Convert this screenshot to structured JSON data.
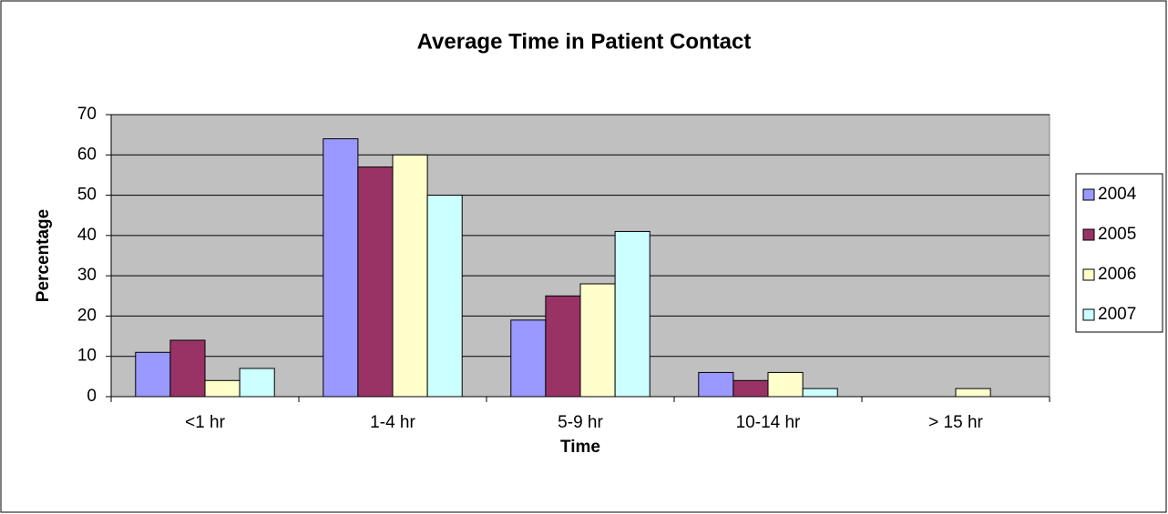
{
  "chart_data": {
    "type": "bar",
    "title": "Average Time in Patient Contact",
    "x_label": "Time",
    "y_label": "Percentage",
    "categories": [
      "<1 hr",
      "1-4 hr",
      "5-9 hr",
      "10-14 hr",
      "> 15 hr"
    ],
    "series": [
      {
        "name": "2004",
        "color": "#9999ff",
        "values": [
          11,
          64,
          19,
          6,
          0
        ]
      },
      {
        "name": "2005",
        "color": "#993366",
        "values": [
          14,
          57,
          25,
          4,
          0
        ]
      },
      {
        "name": "2006",
        "color": "#ffffcc",
        "values": [
          4,
          60,
          28,
          6,
          2
        ]
      },
      {
        "name": "2007",
        "color": "#ccffff",
        "values": [
          7,
          50,
          41,
          2,
          0
        ]
      }
    ],
    "ylim": [
      0,
      70
    ],
    "yticks": [
      0,
      10,
      20,
      30,
      40,
      50,
      60,
      70
    ],
    "grid": true,
    "plot_background": "#c0c0c0",
    "legend": "right"
  }
}
